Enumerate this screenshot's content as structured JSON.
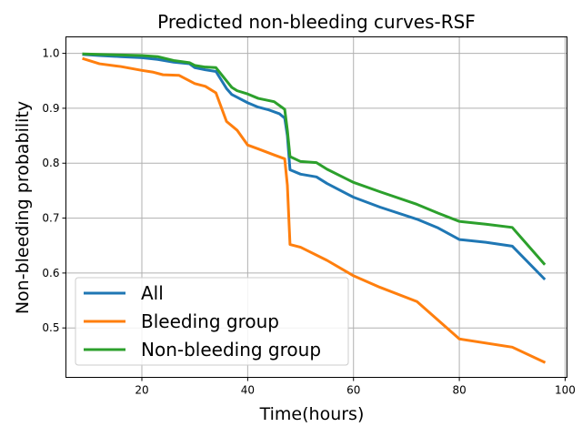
{
  "chart_data": {
    "type": "line",
    "title": "Predicted non-bleeding curves-RSF",
    "xlabel": "Time(hours)",
    "ylabel": "Non-bleeding probability",
    "xlim": [
      5.65,
      100.35
    ],
    "ylim": [
      0.41,
      1.03
    ],
    "xticks": [
      20,
      40,
      60,
      80,
      100
    ],
    "yticks": [
      0.5,
      0.6,
      0.7,
      0.8,
      0.9,
      1.0
    ],
    "xtick_labels": [
      "20",
      "40",
      "60",
      "80",
      "100"
    ],
    "ytick_labels": [
      "0.5",
      "0.6",
      "0.7",
      "0.8",
      "0.9",
      "1.0"
    ],
    "grid": true,
    "legend_position": "lower-left",
    "series": [
      {
        "name": "All",
        "color": "#1f77b4",
        "points": [
          [
            9,
            0.998
          ],
          [
            12,
            0.996
          ],
          [
            16,
            0.994
          ],
          [
            20,
            0.992
          ],
          [
            23,
            0.989
          ],
          [
            26,
            0.984
          ],
          [
            29,
            0.981
          ],
          [
            30,
            0.974
          ],
          [
            32,
            0.97
          ],
          [
            34,
            0.967
          ],
          [
            36,
            0.936
          ],
          [
            37,
            0.925
          ],
          [
            38,
            0.92
          ],
          [
            40,
            0.91
          ],
          [
            42,
            0.902
          ],
          [
            44,
            0.897
          ],
          [
            46,
            0.89
          ],
          [
            47,
            0.882
          ],
          [
            47.5,
            0.85
          ],
          [
            48,
            0.788
          ],
          [
            50,
            0.78
          ],
          [
            53,
            0.775
          ],
          [
            55,
            0.763
          ],
          [
            60,
            0.738
          ],
          [
            65,
            0.72
          ],
          [
            72,
            0.698
          ],
          [
            76,
            0.682
          ],
          [
            80,
            0.661
          ],
          [
            85,
            0.656
          ],
          [
            90,
            0.649
          ],
          [
            96,
            0.59
          ]
        ]
      },
      {
        "name": "Bleeding group",
        "color": "#ff7f0e",
        "points": [
          [
            9,
            0.99
          ],
          [
            12,
            0.981
          ],
          [
            16,
            0.976
          ],
          [
            20,
            0.969
          ],
          [
            22,
            0.966
          ],
          [
            24,
            0.961
          ],
          [
            27,
            0.96
          ],
          [
            30,
            0.945
          ],
          [
            32,
            0.94
          ],
          [
            34,
            0.928
          ],
          [
            36,
            0.876
          ],
          [
            38,
            0.86
          ],
          [
            40,
            0.833
          ],
          [
            42,
            0.826
          ],
          [
            45,
            0.815
          ],
          [
            47,
            0.808
          ],
          [
            47.5,
            0.76
          ],
          [
            48,
            0.652
          ],
          [
            50,
            0.647
          ],
          [
            55,
            0.623
          ],
          [
            60,
            0.595
          ],
          [
            65,
            0.574
          ],
          [
            72,
            0.548
          ],
          [
            80,
            0.48
          ],
          [
            90,
            0.465
          ],
          [
            96,
            0.438
          ]
        ]
      },
      {
        "name": "Non-bleeding group",
        "color": "#2ca02c",
        "points": [
          [
            9,
            0.999
          ],
          [
            12,
            0.998
          ],
          [
            16,
            0.997
          ],
          [
            20,
            0.996
          ],
          [
            23,
            0.994
          ],
          [
            26,
            0.987
          ],
          [
            29,
            0.983
          ],
          [
            30,
            0.978
          ],
          [
            32,
            0.975
          ],
          [
            34,
            0.974
          ],
          [
            36,
            0.95
          ],
          [
            37,
            0.938
          ],
          [
            38,
            0.932
          ],
          [
            40,
            0.926
          ],
          [
            42,
            0.918
          ],
          [
            45,
            0.912
          ],
          [
            47,
            0.898
          ],
          [
            47.5,
            0.86
          ],
          [
            48,
            0.812
          ],
          [
            50,
            0.803
          ],
          [
            53,
            0.801
          ],
          [
            55,
            0.789
          ],
          [
            60,
            0.765
          ],
          [
            65,
            0.748
          ],
          [
            72,
            0.725
          ],
          [
            76,
            0.709
          ],
          [
            80,
            0.694
          ],
          [
            85,
            0.689
          ],
          [
            90,
            0.683
          ],
          [
            96,
            0.617
          ]
        ]
      }
    ]
  }
}
